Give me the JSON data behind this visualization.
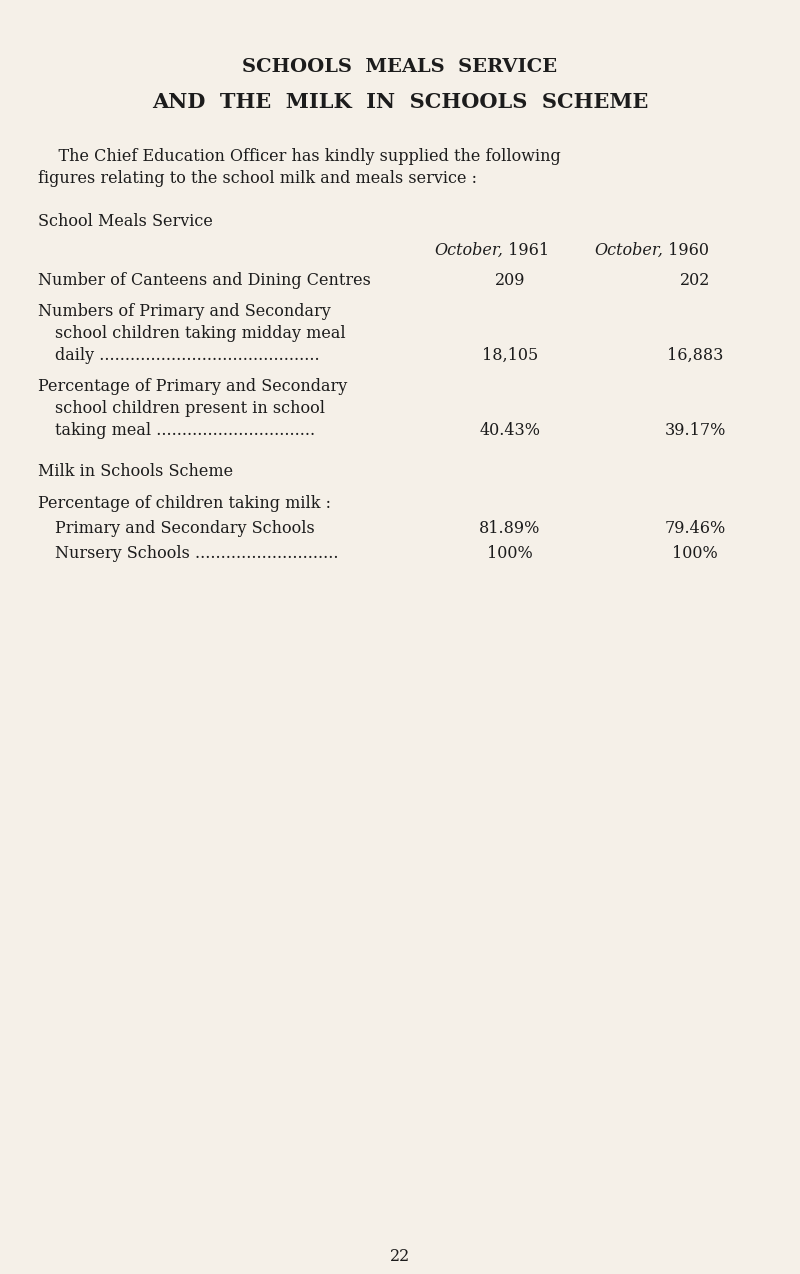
{
  "background_color": "#f5f0e8",
  "title_line1": "SCHOOLS  MEALS  SERVICE",
  "title_line2": "AND  THE  MILK  IN  SCHOOLS  SCHEME",
  "intro_line1": "    The Chief Education Officer has kindly supplied the following",
  "intro_line2": "figures relating to the school milk and meals service :",
  "section1_heading": "School Meals Service",
  "col_header_1961_text": "October,",
  "col_header_1961_num": " 1961",
  "col_header_1960_text": "October,",
  "col_header_1960_num": " 1960",
  "page_number": "22",
  "text_color": "#1c1c1c",
  "title_color": "#111111",
  "figw": 8.0,
  "figh": 12.74,
  "dpi": 100
}
